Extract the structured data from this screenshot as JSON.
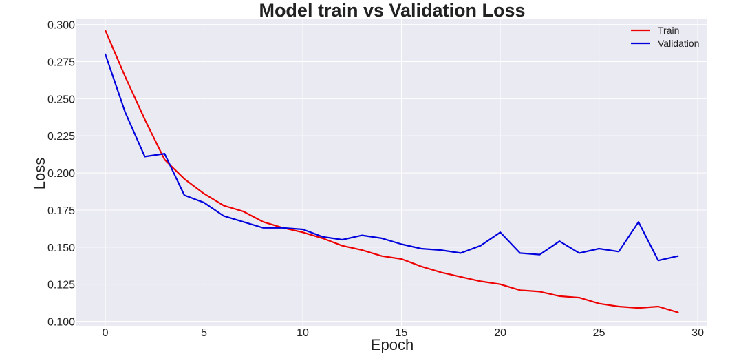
{
  "chart_data": {
    "type": "line",
    "title": "Model train vs Validation Loss",
    "xlabel": "Epoch",
    "ylabel": "Loss",
    "xlim": [
      -1.5,
      30.45
    ],
    "ylim": [
      0.097,
      0.304
    ],
    "xticks": [
      0,
      5,
      10,
      15,
      20,
      25,
      30
    ],
    "yticks": [
      0.1,
      0.125,
      0.15,
      0.175,
      0.2,
      0.225,
      0.25,
      0.275,
      0.3
    ],
    "ytick_labels": [
      "0.100",
      "0.125",
      "0.150",
      "0.175",
      "0.200",
      "0.225",
      "0.250",
      "0.275",
      "0.300"
    ],
    "grid": true,
    "legend_position": "top-right",
    "x": [
      0,
      1,
      2,
      3,
      4,
      5,
      6,
      7,
      8,
      9,
      10,
      11,
      12,
      13,
      14,
      15,
      16,
      17,
      18,
      19,
      20,
      21,
      22,
      23,
      24,
      25,
      26,
      27,
      28,
      29
    ],
    "series": [
      {
        "name": "Train",
        "color": "#ee0000",
        "values": [
          0.296,
          0.265,
          0.236,
          0.209,
          0.196,
          0.186,
          0.178,
          0.174,
          0.167,
          0.163,
          0.16,
          0.156,
          0.151,
          0.148,
          0.144,
          0.142,
          0.137,
          0.133,
          0.13,
          0.127,
          0.125,
          0.121,
          0.12,
          0.117,
          0.116,
          0.112,
          0.11,
          0.109,
          0.11,
          0.106
        ]
      },
      {
        "name": "Validation",
        "color": "#0000dd",
        "values": [
          0.28,
          0.241,
          0.211,
          0.213,
          0.185,
          0.18,
          0.171,
          0.167,
          0.163,
          0.163,
          0.162,
          0.157,
          0.155,
          0.158,
          0.156,
          0.152,
          0.149,
          0.148,
          0.146,
          0.151,
          0.16,
          0.146,
          0.145,
          0.154,
          0.146,
          0.149,
          0.147,
          0.167,
          0.141,
          0.144
        ]
      }
    ]
  }
}
